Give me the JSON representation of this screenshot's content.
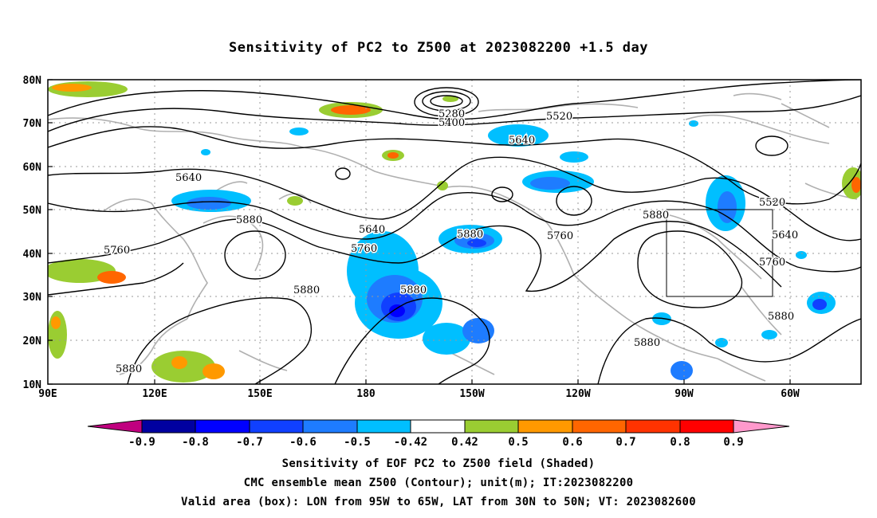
{
  "title": "Sensitivity of PC2 to Z500 at 2023082200 +1.5 day",
  "map": {
    "lat_ticks": [
      "80N",
      "70N",
      "60N",
      "50N",
      "40N",
      "30N",
      "20N",
      "10N"
    ],
    "lon_ticks": [
      "90E",
      "120E",
      "150E",
      "180",
      "150W",
      "120W",
      "90W",
      "60W"
    ],
    "contour_labels": [
      "5280",
      "5400",
      "5520",
      "5640",
      "5640",
      "5640",
      "5880",
      "5760",
      "5760",
      "5880",
      "5880",
      "5880",
      "5880",
      "5760",
      "5880",
      "5520",
      "5640",
      "5760",
      "5880",
      "5880"
    ],
    "valid_box": {
      "lon_from": "95W",
      "lon_to": "65W",
      "lat_from": "30N",
      "lat_to": "50N"
    }
  },
  "colorbar": {
    "labels": [
      "-0.9",
      "-0.8",
      "-0.7",
      "-0.6",
      "-0.5",
      "-0.42",
      "0.42",
      "0.5",
      "0.6",
      "0.7",
      "0.8",
      "0.9"
    ],
    "colors": [
      "#c0007f",
      "#0000a0",
      "#0000ff",
      "#1040ff",
      "#1e7cff",
      "#00bfff",
      "#ffffff",
      "#9acd32",
      "#ff9900",
      "#ff6600",
      "#ff3300",
      "#ff0000",
      "#ff99cc"
    ]
  },
  "footer": {
    "line1": "Sensitivity of EOF PC2 to Z500 field (Shaded)",
    "line2": "CMC ensemble mean Z500 (Contour); unit(m); IT:2023082200",
    "line3": "Valid area (box): LON from 95W to 65W, LAT from 30N to 50N; VT: 2023082600"
  }
}
